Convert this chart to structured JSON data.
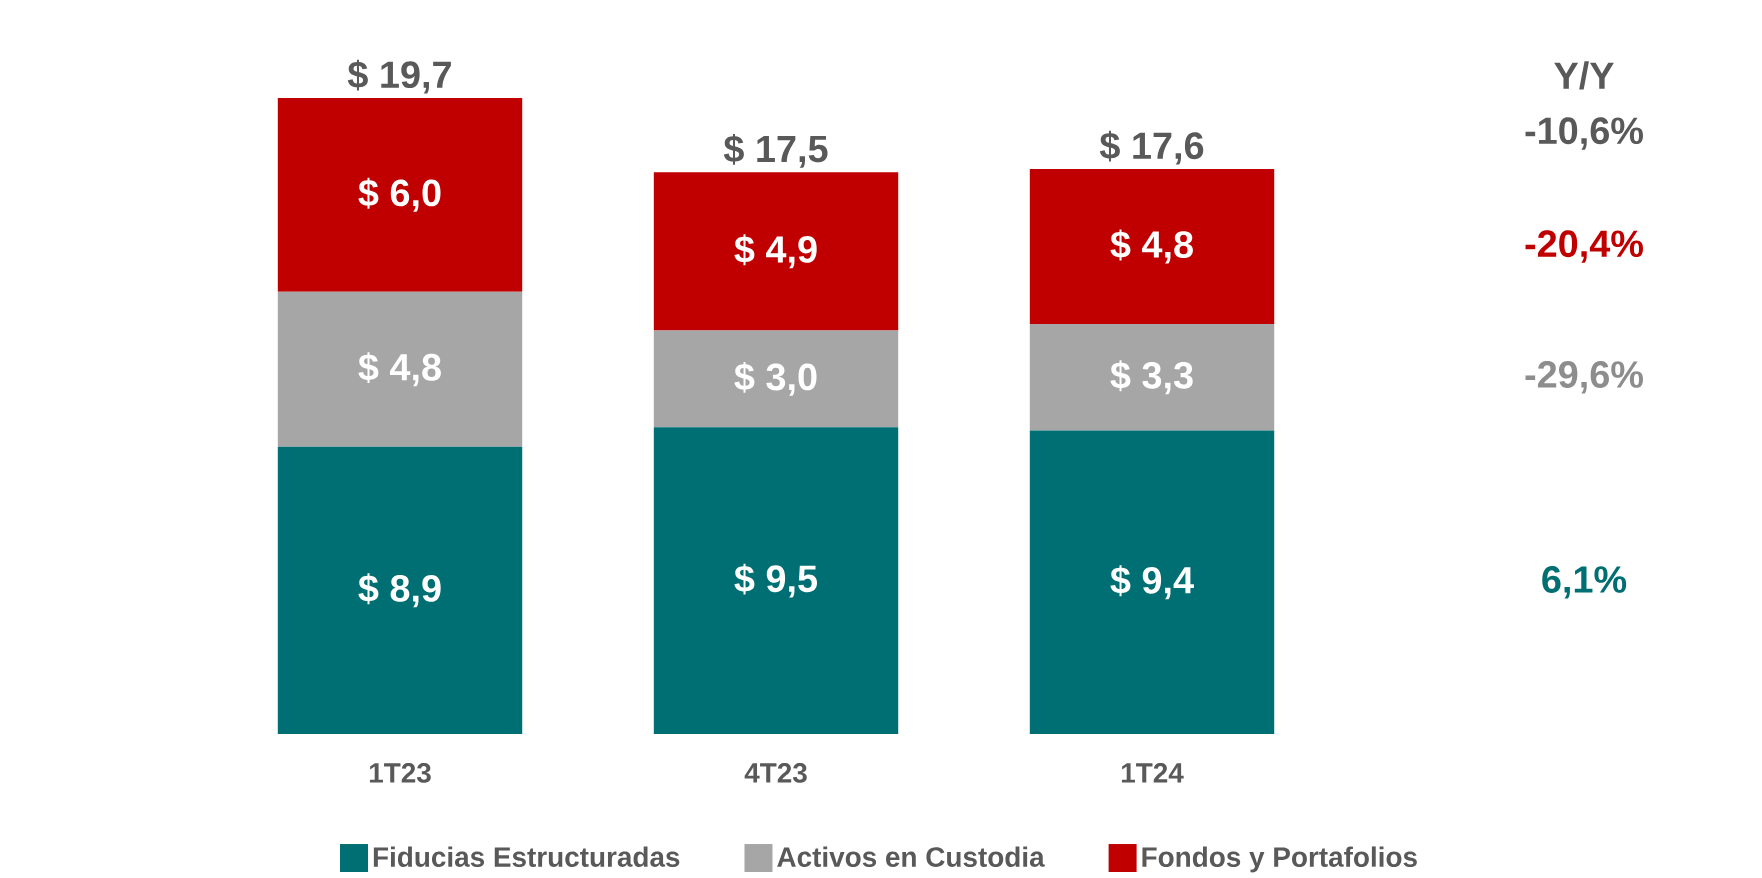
{
  "chart_data": {
    "type": "bar",
    "stacked": true,
    "categories": [
      "1T23",
      "4T23",
      "1T24"
    ],
    "series": [
      {
        "name": "Fiducias Estructuradas",
        "color": "#006f73",
        "values": [
          8.9,
          9.5,
          9.4
        ],
        "value_labels": [
          "$ 8,9",
          "$ 9,5",
          "$ 9,4"
        ]
      },
      {
        "name": "Activos en Custodia",
        "color": "#a6a6a6",
        "values": [
          4.8,
          3.0,
          3.3
        ],
        "value_labels": [
          "$ 4,8",
          "$ 3,0",
          "$ 3,3"
        ]
      },
      {
        "name": "Fondos y Portafolios",
        "color": "#c00000",
        "values": [
          6.0,
          4.9,
          4.8
        ],
        "value_labels": [
          "$ 6,0",
          "$ 4,9",
          "$ 4,8"
        ]
      }
    ],
    "totals": [
      "$ 19,7",
      "$ 17,5",
      "$ 17,6"
    ],
    "annotations": [
      "Y/Y",
      "-10,6%",
      "-20,4%",
      "-29,6%",
      "6,1%"
    ],
    "legend": "bottom"
  }
}
